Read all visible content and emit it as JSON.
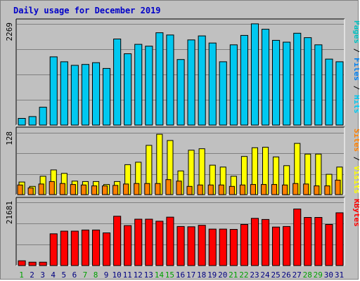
{
  "chart_data": {
    "type": "bar",
    "title": "Daily usage for December 2019",
    "categories": [
      "1",
      "2",
      "3",
      "4",
      "5",
      "6",
      "7",
      "8",
      "9",
      "10",
      "11",
      "12",
      "13",
      "14",
      "15",
      "16",
      "17",
      "18",
      "19",
      "20",
      "21",
      "22",
      "23",
      "24",
      "25",
      "26",
      "27",
      "28",
      "29",
      "30",
      "31"
    ],
    "weekend_days": [
      "1",
      "7",
      "8",
      "14",
      "15",
      "21",
      "22",
      "28",
      "29"
    ],
    "panels": [
      {
        "id": "top",
        "max_label": "2269",
        "ylim": [
          0,
          2269
        ],
        "legend": [
          "Pages",
          "Files",
          "Hits"
        ],
        "series": [
          {
            "name": "Hits",
            "color": "#00c8f0",
            "values": [
              150,
              190,
              400,
              1530,
              1420,
              1340,
              1360,
              1400,
              1270,
              1930,
              1600,
              1810,
              1770,
              2070,
              2020,
              1470,
              1910,
              2000,
              1840,
              1420,
              1800,
              2010,
              2270,
              2150,
              1900,
              1860,
              2060,
              1960,
              1800,
              1480,
              1420
            ]
          },
          {
            "name": "Files",
            "color": "#0080f0",
            "values": []
          },
          {
            "name": "Pages",
            "color": "#00c0c0",
            "values": []
          }
        ]
      },
      {
        "id": "middle",
        "max_label": "128",
        "ylim": [
          0,
          128
        ],
        "legend": [
          "Sites",
          "Visits"
        ],
        "series": [
          {
            "name": "Visits",
            "color": "#ffff00",
            "values": [
              26,
              17,
              38,
              51,
              44,
              28,
              27,
              27,
              21,
              27,
              62,
              67,
              102,
              125,
              112,
              49,
              92,
              95,
              61,
              57,
              38,
              79,
              97,
              98,
              78,
              60,
              106,
              84,
              84,
              42,
              57
            ]
          },
          {
            "name": "Sites",
            "color": "#ff8000",
            "values": [
              20,
              14,
              22,
              27,
              23,
              21,
              20,
              18,
              18,
              19,
              22,
              23,
              23,
              23,
              31,
              28,
              17,
              20,
              20,
              20,
              17,
              20,
              21,
              21,
              21,
              20,
              23,
              22,
              18,
              18,
              30
            ]
          }
        ]
      },
      {
        "id": "bottom",
        "max_label": "21681",
        "ylim": [
          0,
          21681
        ],
        "legend": [
          "KBytes"
        ],
        "series": [
          {
            "name": "KBytes",
            "color": "#ff0000",
            "values": [
              1650,
              1150,
              1150,
              10900,
              11800,
              11800,
              12200,
              12200,
              11200,
              16900,
              13700,
              15900,
              15900,
              15200,
              16600,
              13400,
              13300,
              13800,
              12500,
              12500,
              12400,
              14100,
              16200,
              15800,
              13200,
              13400,
              19400,
              16500,
              16500,
              14100,
              18100
            ]
          }
        ]
      }
    ],
    "grid": true
  },
  "colors": {
    "background": "#c0c0c0",
    "plot": "#c0c0c0",
    "title": "#0000c8",
    "weekday_label": "#000080",
    "weekend_label": "#00a000"
  }
}
